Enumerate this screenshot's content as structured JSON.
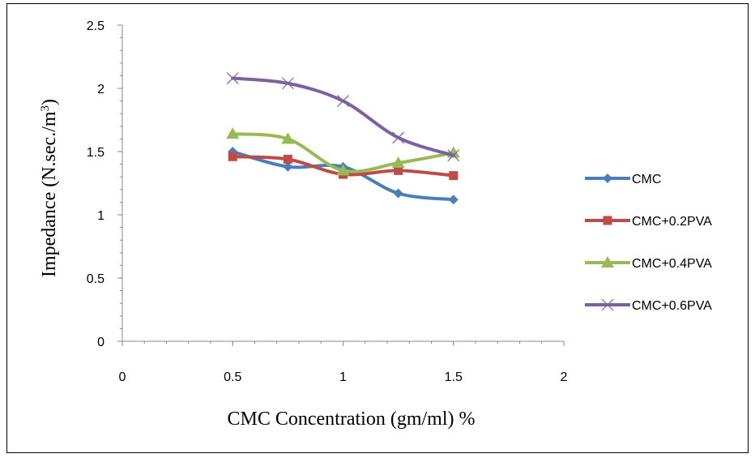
{
  "chart_data": {
    "type": "line",
    "title": "",
    "xlabel": "CMC Concentration (gm/ml) %",
    "ylabel": "Impedance (N.sec./m³)",
    "ylabel_base": "Impedance  (N.sec./m",
    "ylabel_sup": "3",
    "ylabel_close": ")",
    "xlim": [
      0,
      2
    ],
    "ylim": [
      0,
      2.5
    ],
    "x_ticks": [
      0,
      0.5,
      1,
      1.5,
      2
    ],
    "x_tick_labels": [
      "0",
      "0.5",
      "1",
      "1.5",
      "2"
    ],
    "y_ticks": [
      0,
      0.5,
      1,
      1.5,
      2,
      2.5
    ],
    "y_tick_labels": [
      "0",
      "0.5",
      "1",
      "1.5",
      "2",
      "2.5"
    ],
    "grid": false,
    "smooth_lines": true,
    "legend_position": "right",
    "x": [
      0.5,
      0.75,
      1,
      1.25,
      1.5
    ],
    "series": [
      {
        "name": "CMC",
        "values": [
          1.5,
          1.38,
          1.38,
          1.17,
          1.12
        ],
        "color": "#4a7ebb",
        "marker": "diamond"
      },
      {
        "name": "CMC+0.2PVA",
        "values": [
          1.46,
          1.44,
          1.32,
          1.35,
          1.31
        ],
        "color": "#be4b48",
        "marker": "square"
      },
      {
        "name": "CMC+0.4PVA",
        "values": [
          1.64,
          1.6,
          1.35,
          1.41,
          1.49
        ],
        "color": "#98b954",
        "marker": "triangle"
      },
      {
        "name": "CMC+0.6PVA",
        "values": [
          2.08,
          2.04,
          1.9,
          1.61,
          1.47
        ],
        "color": "#7d60a0",
        "marker": "x"
      }
    ]
  }
}
